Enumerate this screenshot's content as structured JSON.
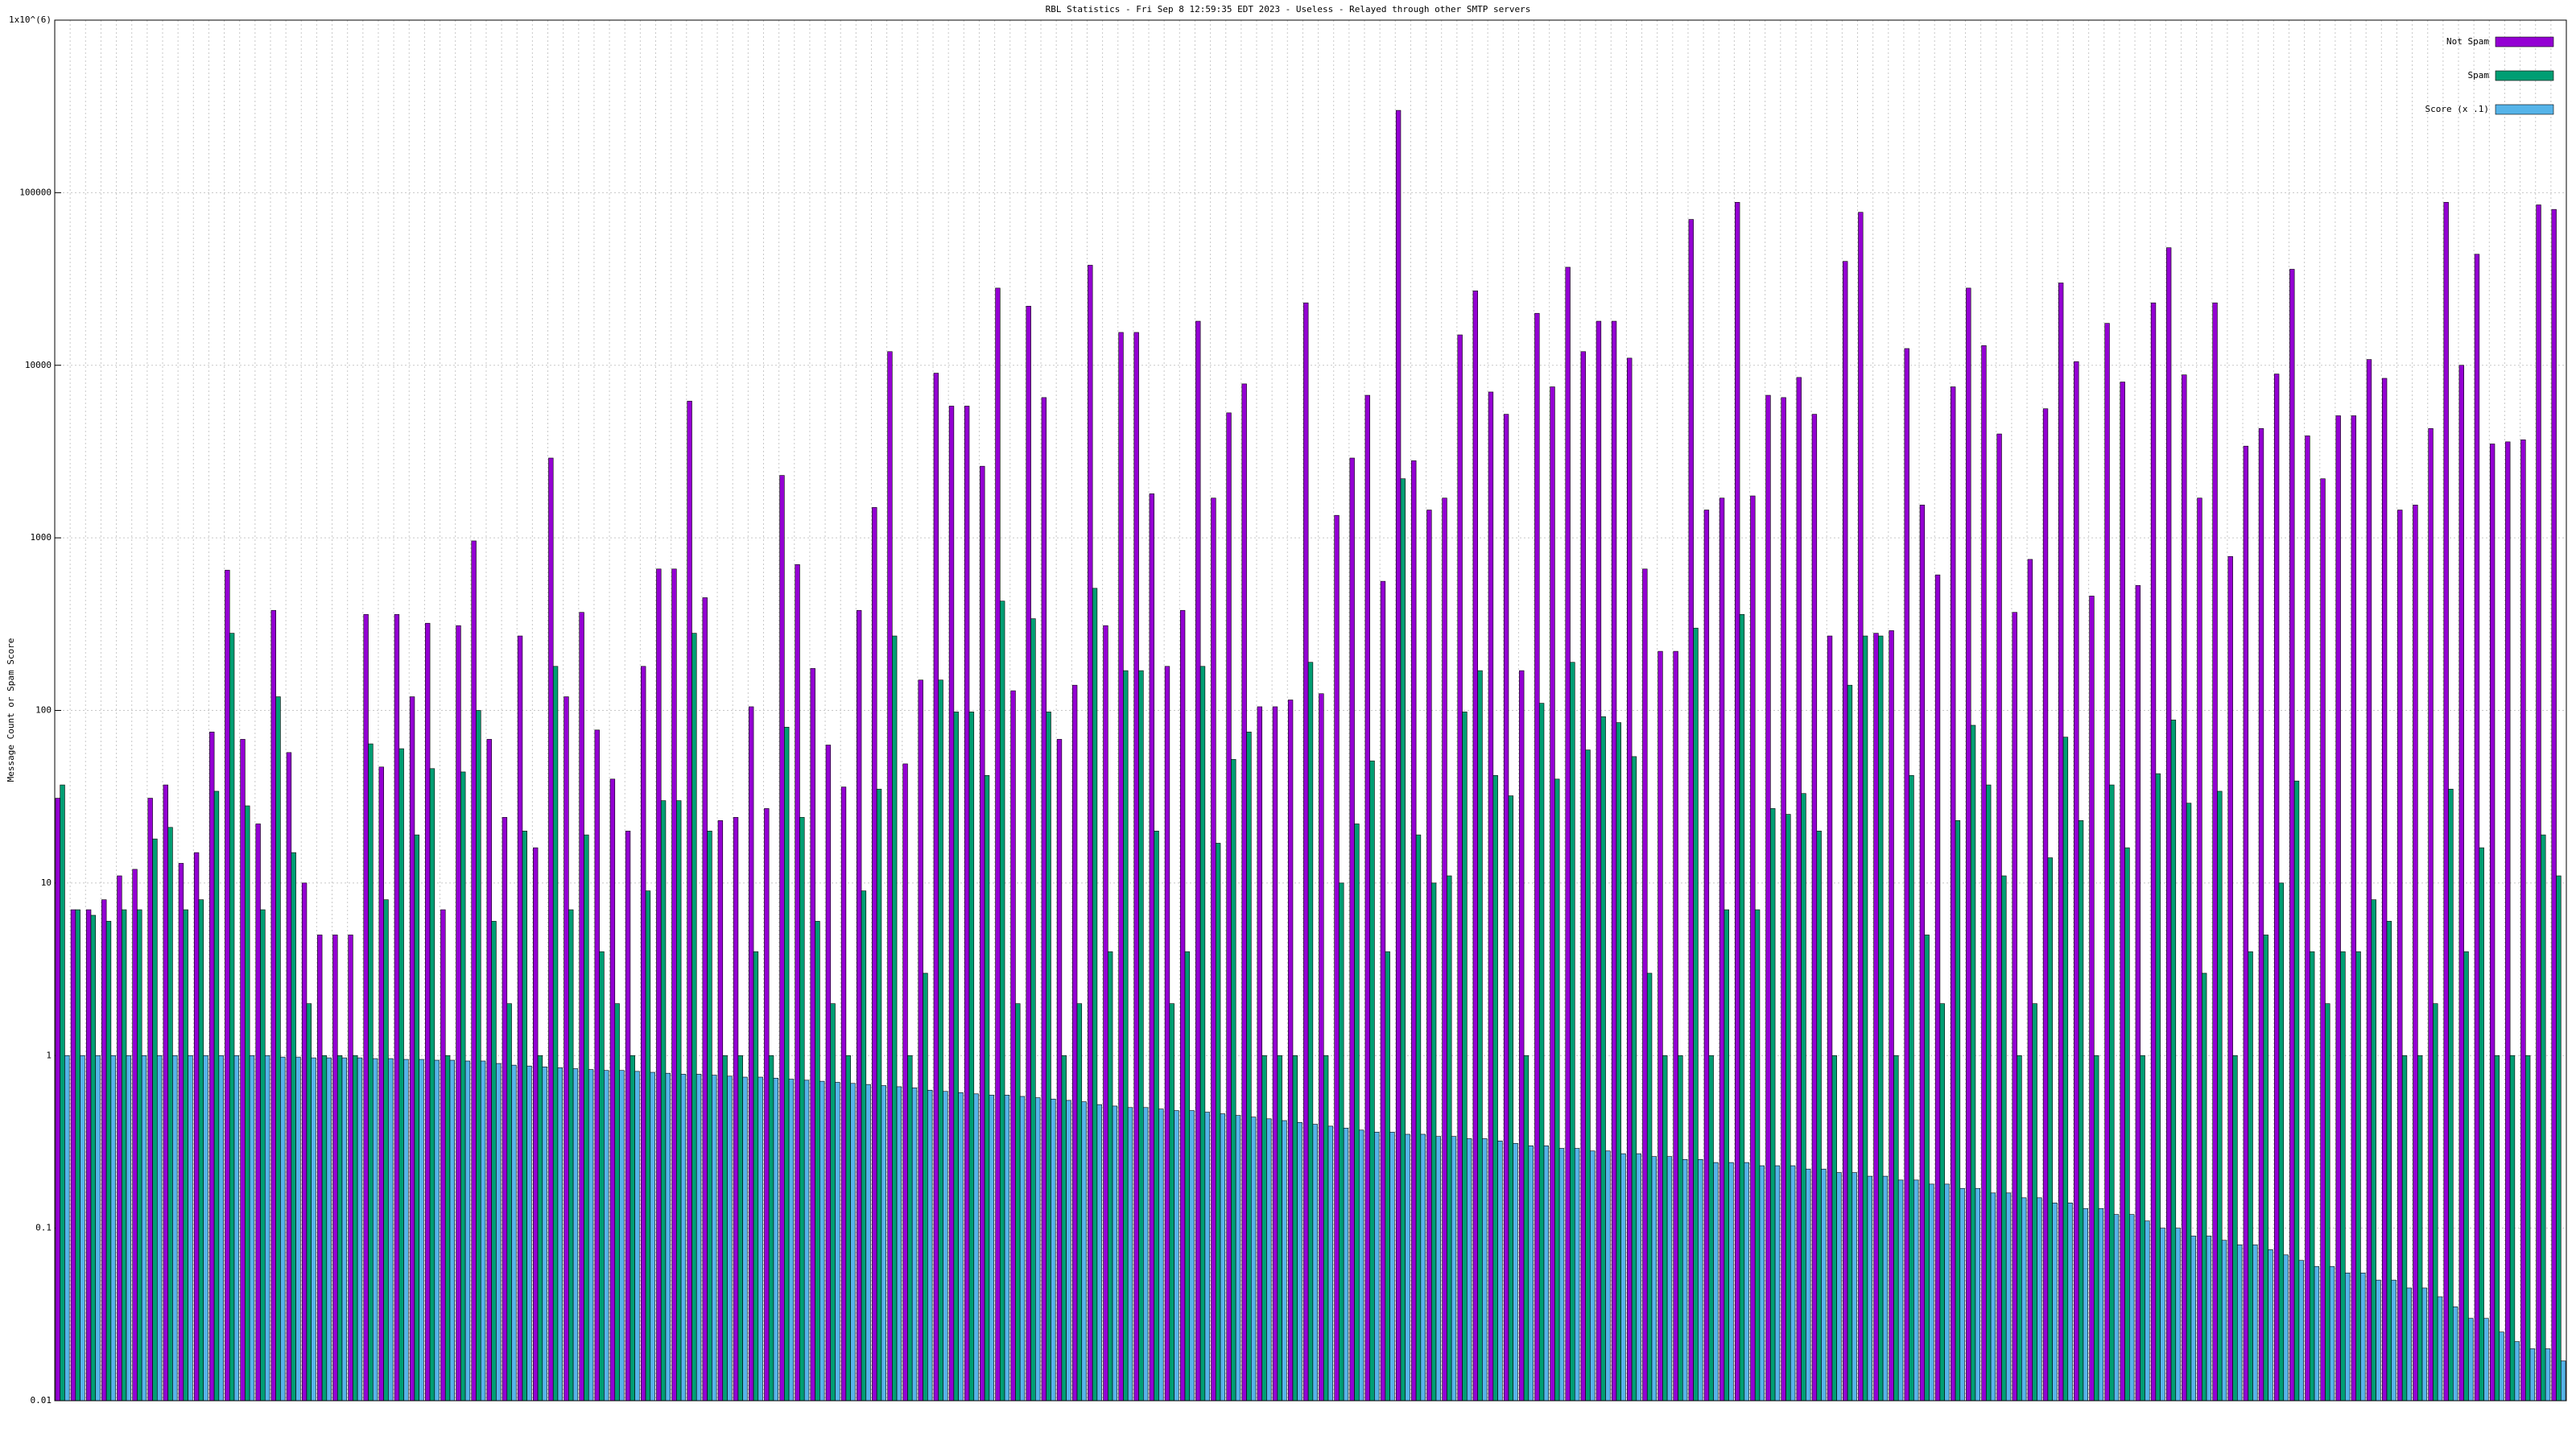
{
  "chart_data": {
    "type": "bar",
    "title": "RBL Statistics - Fri Sep  8 12:59:35 EDT 2023 - Useless - Relayed through other SMTP servers",
    "ylabel": "Message Count or Spam Score",
    "log_scale": true,
    "grid": true,
    "legend": "top-right",
    "ylim": [
      0.01,
      1000000
    ],
    "yticks": [
      0.01,
      0.1,
      1,
      10,
      100,
      1000,
      10000,
      100000,
      {
        "value": 1000000,
        "label": "1x10^(6)"
      }
    ],
    "categories": [
      null,
      null,
      null,
      null,
      null,
      null,
      null,
      null,
      null,
      null,
      null,
      null,
      null,
      null,
      null,
      null,
      null,
      null,
      null,
      null,
      null,
      null,
      null,
      null,
      null,
      null,
      null,
      null,
      null,
      null,
      null,
      null,
      null,
      null,
      null,
      null,
      null,
      null,
      null,
      null,
      null,
      null,
      null,
      null,
      null,
      null,
      null,
      null,
      null,
      null,
      null,
      null,
      null,
      null,
      null,
      null,
      null,
      null,
      null,
      null,
      null,
      null,
      null,
      null,
      null,
      null,
      null,
      null,
      null,
      null,
      null,
      null,
      null,
      null,
      null,
      null,
      null,
      null,
      null,
      null,
      null,
      null,
      null,
      null,
      null,
      null,
      null,
      null,
      null,
      null,
      null,
      null,
      null,
      null,
      null,
      null,
      null,
      null,
      null,
      null,
      null,
      null,
      null,
      null,
      null,
      null,
      null,
      null,
      null,
      null,
      null,
      null,
      null,
      null,
      null,
      null,
      null,
      null,
      null,
      null,
      null,
      null,
      null,
      null,
      null,
      null,
      null,
      null,
      null,
      null,
      null,
      null,
      null,
      null,
      null,
      null,
      null,
      null,
      null,
      null,
      null,
      null,
      null,
      null,
      null,
      null,
      null,
      null,
      null,
      null,
      null,
      null,
      null,
      null,
      null,
      null,
      null,
      null,
      null,
      null,
      null,
      null,
      null
    ],
    "series": [
      {
        "name": "Not Spam",
        "color": "#9400d3",
        "values": [
          31,
          7,
          7,
          8,
          11,
          12,
          31,
          37,
          13,
          15,
          75,
          650,
          68,
          22,
          380,
          57,
          10,
          5,
          5,
          5,
          360,
          47,
          360,
          120,
          320,
          7,
          310,
          960,
          68,
          24,
          270,
          16,
          2900,
          120,
          370,
          77,
          40,
          20,
          180,
          660,
          660,
          6200,
          450,
          23,
          24,
          105,
          27,
          2300,
          700,
          175,
          63,
          36,
          380,
          1500,
          12000,
          49,
          150,
          9000,
          5800,
          5800,
          2600,
          28000,
          130,
          22000,
          6500,
          68,
          140,
          38000,
          310,
          15500,
          15500,
          1800,
          180,
          380,
          18000,
          1700,
          5300,
          7800,
          105,
          105,
          115,
          23000,
          125,
          1350,
          2900,
          6700,
          560,
          300000,
          2800,
          1450,
          1700,
          15000,
          27000,
          7000,
          5200,
          170,
          20000,
          7500,
          37000,
          12000,
          18000,
          18000,
          11000,
          660,
          220,
          220,
          70000,
          1450,
          1700,
          88000,
          1750,
          6700,
          6500,
          8500,
          5200,
          270,
          40000,
          77000,
          280,
          290,
          12500,
          1550,
          610,
          7500,
          28000,
          13000,
          4000,
          370,
          750,
          5600,
          30000,
          10500,
          460,
          17500,
          8000,
          530,
          23000,
          48000,
          8800,
          1700,
          23000,
          780,
          3400,
          4300,
          8900,
          36000,
          3900,
          2200,
          5100,
          5100,
          10800,
          8400,
          1450,
          1550,
          4300,
          88000,
          10000,
          44000,
          3500,
          3600,
          3700,
          85000,
          80000
        ]
      },
      {
        "name": "Spam",
        "color": "#009e73",
        "values": [
          37,
          7,
          6.5,
          6,
          7,
          7,
          18,
          21,
          7,
          8,
          34,
          280,
          28,
          7,
          120,
          15,
          2,
          1,
          1,
          1,
          64,
          8,
          60,
          19,
          46,
          1,
          44,
          100,
          6,
          2,
          20,
          1,
          180,
          7,
          19,
          4,
          2,
          1,
          9,
          30,
          30,
          280,
          20,
          1,
          1,
          4,
          1,
          80,
          24,
          6,
          2,
          1,
          9,
          35,
          270,
          1,
          3,
          150,
          98,
          98,
          42,
          430,
          2,
          340,
          98,
          1,
          2,
          510,
          4,
          170,
          170,
          20,
          2,
          4,
          180,
          17,
          52,
          75,
          1,
          1,
          1,
          190,
          1,
          10,
          22,
          51,
          4,
          2200,
          19,
          10,
          11,
          98,
          170,
          42,
          32,
          1,
          110,
          40,
          190,
          59,
          92,
          85,
          54,
          3,
          1,
          1,
          300,
          1,
          7,
          360,
          7,
          27,
          25,
          33,
          20,
          1,
          140,
          270,
          270,
          1,
          42,
          5,
          2,
          23,
          82,
          37,
          11,
          1,
          2,
          14,
          70,
          23,
          1,
          37,
          16,
          1,
          43,
          88,
          29,
          3,
          34,
          1,
          4,
          5,
          10,
          39,
          4,
          2,
          4,
          4,
          8,
          6,
          1,
          1,
          2,
          35,
          4,
          16,
          1,
          1,
          1,
          19,
          11
        ]
      },
      {
        "name": "Score (x .1)",
        "color": "#56b4e9",
        "values": [
          1,
          1,
          1,
          1,
          1,
          1,
          1,
          1,
          1,
          1,
          1,
          1,
          1,
          1,
          0.98,
          0.98,
          0.97,
          0.97,
          0.97,
          0.97,
          0.96,
          0.96,
          0.95,
          0.95,
          0.94,
          0.94,
          0.93,
          0.93,
          0.9,
          0.88,
          0.87,
          0.86,
          0.85,
          0.84,
          0.83,
          0.82,
          0.82,
          0.81,
          0.8,
          0.79,
          0.78,
          0.78,
          0.77,
          0.76,
          0.75,
          0.75,
          0.74,
          0.73,
          0.72,
          0.71,
          0.7,
          0.69,
          0.68,
          0.67,
          0.66,
          0.65,
          0.63,
          0.62,
          0.61,
          0.6,
          0.59,
          0.59,
          0.58,
          0.57,
          0.56,
          0.55,
          0.54,
          0.52,
          0.51,
          0.5,
          0.5,
          0.49,
          0.48,
          0.48,
          0.47,
          0.46,
          0.45,
          0.44,
          0.43,
          0.42,
          0.41,
          0.4,
          0.39,
          0.38,
          0.37,
          0.36,
          0.36,
          0.35,
          0.35,
          0.34,
          0.34,
          0.33,
          0.33,
          0.32,
          0.31,
          0.3,
          0.3,
          0.29,
          0.29,
          0.28,
          0.28,
          0.27,
          0.27,
          0.26,
          0.26,
          0.25,
          0.25,
          0.24,
          0.24,
          0.24,
          0.23,
          0.23,
          0.23,
          0.22,
          0.22,
          0.21,
          0.21,
          0.2,
          0.2,
          0.19,
          0.19,
          0.18,
          0.18,
          0.17,
          0.17,
          0.16,
          0.16,
          0.15,
          0.15,
          0.14,
          0.14,
          0.13,
          0.13,
          0.12,
          0.12,
          0.11,
          0.1,
          0.1,
          0.09,
          0.09,
          0.085,
          0.08,
          0.08,
          0.075,
          0.07,
          0.065,
          0.06,
          0.06,
          0.055,
          0.055,
          0.05,
          0.05,
          0.045,
          0.045,
          0.04,
          0.035,
          0.03,
          0.03,
          0.025,
          0.022,
          0.02,
          0.02,
          0.017
        ]
      }
    ]
  }
}
